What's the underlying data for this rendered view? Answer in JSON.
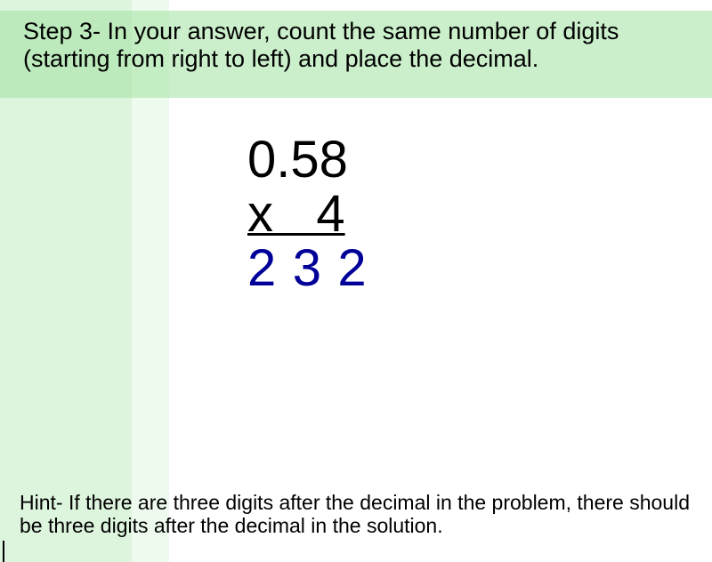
{
  "instruction": "Step 3- In your answer, count the same number of digits (starting from right to left) and place the decimal.",
  "math": {
    "top_number": "0.58",
    "operator_row": "x   4",
    "answer": "2 3 2"
  },
  "hint": "Hint- If there are three digits after the decimal in the problem, there should be three digits after the decimal in the solution.",
  "colors": {
    "answer_color": "#000099",
    "stripe_green": "#b4e6b4",
    "band_green": "#a0e1a0",
    "text": "#000000",
    "background": "#ffffff"
  },
  "typography": {
    "instruction_fontsize": 27,
    "math_fontsize": 58,
    "hint_fontsize": 23,
    "font_family": "Arial"
  }
}
